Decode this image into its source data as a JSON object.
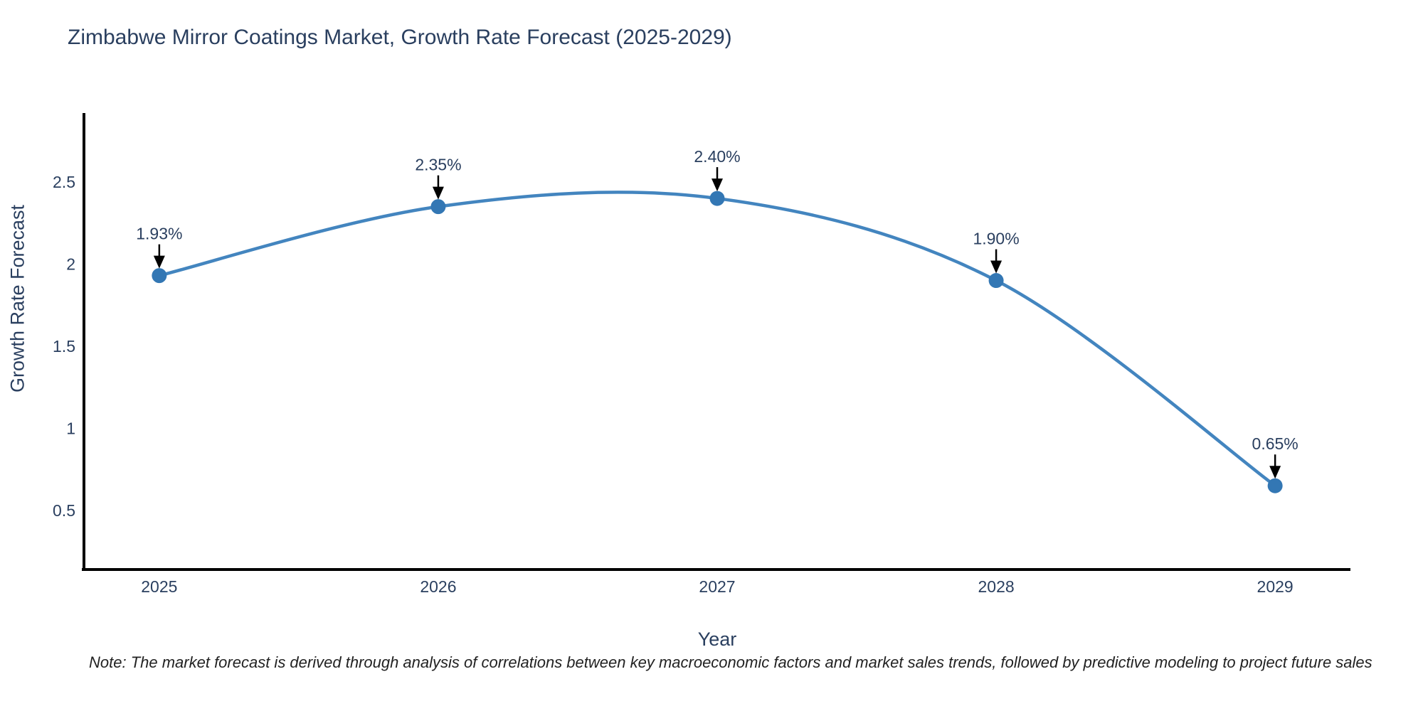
{
  "figure": {
    "note": "Note: The market forecast is derived through analysis of correlations between key macroeconomic factors and market sales trends, followed by predictive modeling to project future sales"
  },
  "chart_data": {
    "type": "line",
    "title": "Zimbabwe Mirror Coatings Market, Growth Rate Forecast (2025-2029)",
    "x": [
      2025,
      2026,
      2027,
      2028,
      2029
    ],
    "series": [
      {
        "name": "Growth Rate Forecast",
        "values": [
          1.93,
          2.35,
          2.4,
          1.9,
          0.65
        ]
      }
    ],
    "point_labels": [
      "1.93%",
      "2.35%",
      "2.40%",
      "1.90%",
      "0.65%"
    ],
    "xlabel": "Year",
    "ylabel": "Growth Rate Forecast",
    "xticks": [
      "2025",
      "2026",
      "2027",
      "2028",
      "2029"
    ],
    "yticks": [
      0.5,
      1,
      1.5,
      2,
      2.5
    ],
    "xlim": [
      2024.73,
      2029.27
    ],
    "ylim": [
      0.14,
      2.92
    ],
    "line_shape": "spline",
    "grid": false,
    "legend": "none",
    "annotations_have_arrows": true,
    "colors": {
      "line": "#4385bf",
      "marker": "#3377b4",
      "axis_line": "#000000",
      "tick_text": "#2a3f5f",
      "title_text": "#2a3f5f",
      "annotation_text": "#2a3f5f",
      "annotation_arrow": "#000000",
      "note_text": "#222222",
      "background": "#ffffff"
    }
  }
}
